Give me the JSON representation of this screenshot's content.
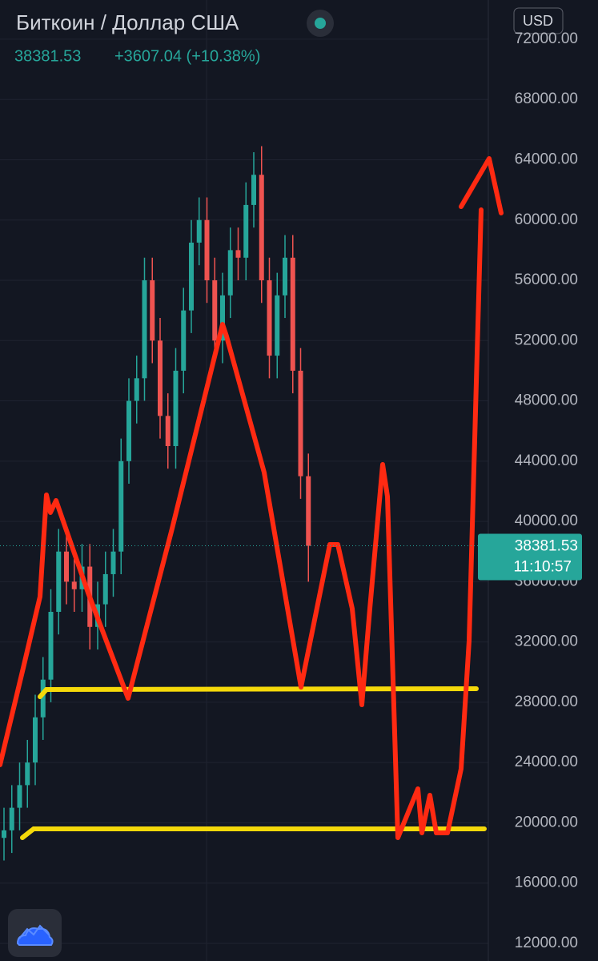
{
  "chart_data": {
    "type": "candlestick",
    "title": "Биткоин / Доллар США",
    "last_price": 38381.53,
    "change": "+3607.04 (+10.38%)",
    "currency": "USD",
    "time": "11:10:57",
    "up_color": "#26a69a",
    "down_color": "#ef5350",
    "grid": true,
    "open": [
      19000,
      19500,
      21000,
      22500,
      24000,
      27000,
      29500,
      34000,
      38000,
      36000,
      35500,
      37000,
      33000,
      34500,
      36500,
      38000,
      44000,
      48000,
      49500,
      56000,
      52000,
      47000,
      45000,
      50000,
      54000,
      58500,
      60000,
      56000,
      52000,
      55000,
      58000,
      57500,
      61000,
      63000,
      56000,
      51000,
      55000,
      57500,
      50000,
      43000
    ],
    "high": [
      21000,
      22500,
      24000,
      25500,
      28500,
      31000,
      35500,
      39500,
      39500,
      37500,
      38500,
      38500,
      36000,
      38000,
      39500,
      45500,
      49500,
      51000,
      57500,
      57500,
      53500,
      48500,
      51500,
      55500,
      60000,
      61500,
      61500,
      57500,
      56500,
      59500,
      59500,
      62500,
      64500,
      64900,
      57500,
      56500,
      59000,
      59000,
      51500,
      44500
    ],
    "low": [
      17500,
      18000,
      19500,
      21000,
      22500,
      25500,
      28000,
      32500,
      34500,
      34000,
      34000,
      31500,
      31500,
      33000,
      35000,
      36500,
      42500,
      46500,
      48000,
      50500,
      45500,
      43500,
      43500,
      48500,
      52500,
      57000,
      54500,
      50500,
      50500,
      53500,
      56000,
      56000,
      59500,
      54500,
      49500,
      49500,
      53500,
      48500,
      41500,
      36000
    ],
    "close": [
      19500,
      21000,
      22500,
      24000,
      27000,
      29500,
      34000,
      38000,
      36000,
      35500,
      37000,
      33000,
      34500,
      36500,
      38000,
      44000,
      48000,
      49500,
      56000,
      52000,
      47000,
      45000,
      50000,
      54000,
      58500,
      60000,
      56000,
      52000,
      55000,
      58000,
      57500,
      61000,
      63000,
      56000,
      51000,
      55000,
      57500,
      50000,
      43000,
      38381.53
    ],
    "ylim": [
      10830,
      74600
    ],
    "yticks": [
      {
        "value": 12000,
        "label": "12000.00"
      },
      {
        "value": 16000,
        "label": "16000.00"
      },
      {
        "value": 20000,
        "label": "20000.00"
      },
      {
        "value": 24000,
        "label": "24000.00"
      },
      {
        "value": 28000,
        "label": "28000.00"
      },
      {
        "value": 32000,
        "label": "32000.00"
      },
      {
        "value": 36000,
        "label": "36000.00"
      },
      {
        "value": 40000,
        "label": "40000.00"
      },
      {
        "value": 44000,
        "label": "44000.00"
      },
      {
        "value": 48000,
        "label": "48000.00"
      },
      {
        "value": 52000,
        "label": "52000.00"
      },
      {
        "value": 56000,
        "label": "56000.00"
      },
      {
        "value": 60000,
        "label": "60000.00"
      },
      {
        "value": 64000,
        "label": "64000.00"
      },
      {
        "value": 68000,
        "label": "68000.00"
      },
      {
        "value": 72000,
        "label": "72000.00"
      }
    ]
  }
}
